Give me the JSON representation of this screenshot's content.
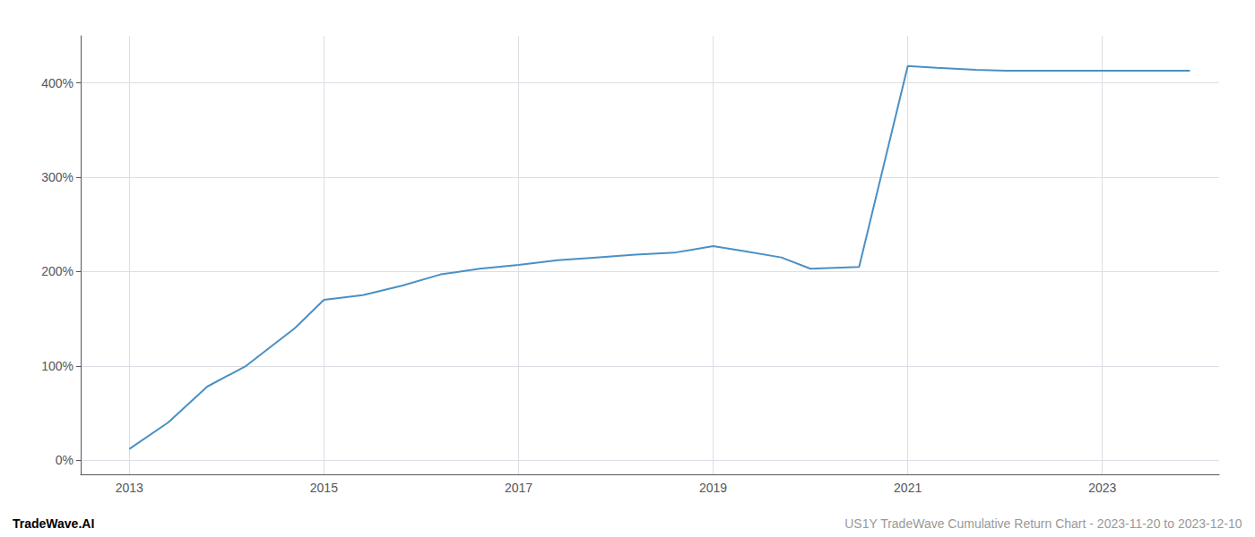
{
  "chart_data": {
    "type": "line",
    "x": [
      2013.0,
      2013.4,
      2013.8,
      2014.2,
      2014.7,
      2015.0,
      2015.4,
      2015.8,
      2016.2,
      2016.6,
      2017.0,
      2017.4,
      2017.8,
      2018.2,
      2018.6,
      2019.0,
      2019.3,
      2019.7,
      2020.0,
      2020.5,
      2021.0,
      2021.3,
      2021.7,
      2022.0,
      2022.5,
      2023.0,
      2023.9
    ],
    "values": [
      12,
      40,
      78,
      100,
      140,
      170,
      175,
      185,
      197,
      203,
      207,
      212,
      215,
      218,
      220,
      227,
      222,
      215,
      203,
      205,
      418,
      416,
      414,
      413,
      413,
      413,
      413
    ],
    "color": "#4a90c4",
    "xlim": [
      2012.5,
      2024.2
    ],
    "ylim": [
      -15,
      450
    ],
    "xticks": [
      2013,
      2015,
      2017,
      2019,
      2021,
      2023
    ],
    "yticks": [
      {
        "value": 0,
        "label": "0%"
      },
      {
        "value": 100,
        "label": "100%"
      },
      {
        "value": 200,
        "label": "200%"
      },
      {
        "value": 300,
        "label": "300%"
      },
      {
        "value": 400,
        "label": "400%"
      }
    ],
    "grid": true,
    "annotations": [
      "TradeWave.AI",
      "US1Y TradeWave Cumulative Return Chart - 2023-11-20 to 2023-12-10"
    ]
  }
}
